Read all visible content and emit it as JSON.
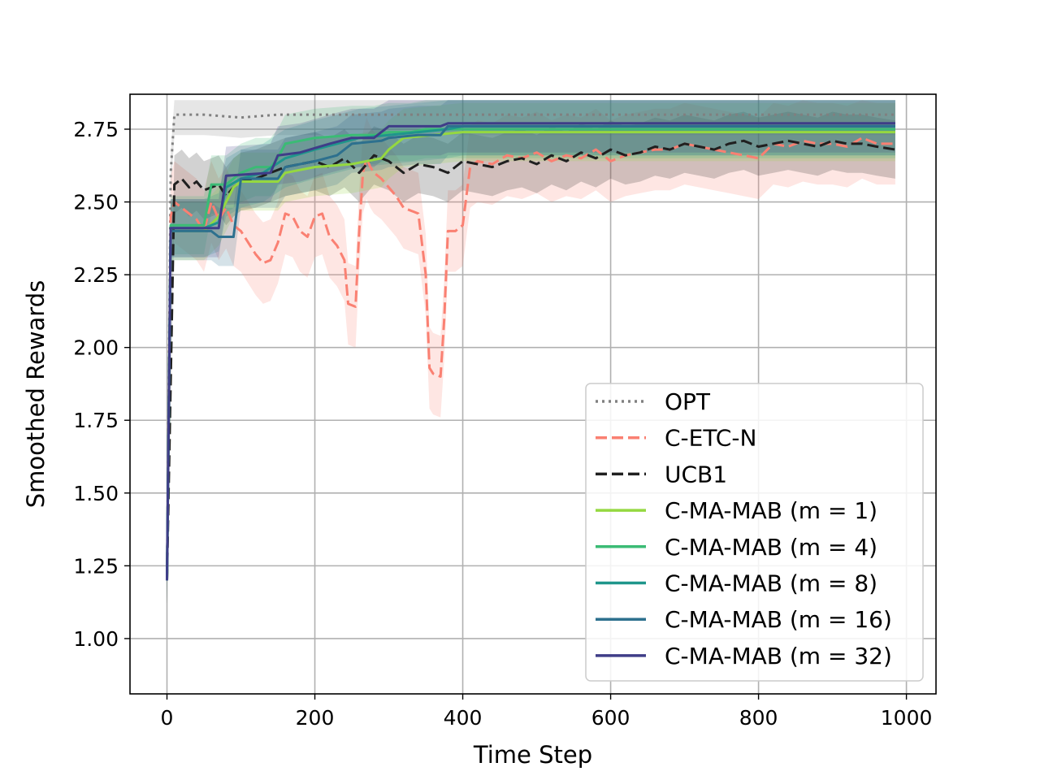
{
  "chart_data": {
    "type": "line",
    "title": "",
    "xlabel": "Time Step",
    "ylabel": "Smoothed Rewards",
    "xlim": [
      -50,
      1040
    ],
    "ylim": [
      0.81,
      2.87
    ],
    "xticks": [
      0,
      200,
      400,
      600,
      800,
      1000
    ],
    "xtick_labels": [
      "0",
      "200",
      "400",
      "600",
      "800",
      "1000"
    ],
    "yticks": [
      1.0,
      1.25,
      1.5,
      1.75,
      2.0,
      2.25,
      2.5,
      2.75
    ],
    "ytick_labels": [
      "1.00",
      "1.25",
      "1.50",
      "1.75",
      "2.00",
      "2.25",
      "2.50",
      "2.75"
    ],
    "grid": true,
    "legend_position": "lower-right",
    "series": [
      {
        "name": "OPT",
        "color": "#808080",
        "style": "dotted",
        "x": [
          0,
          5,
          10,
          50,
          100,
          150,
          200,
          250,
          300,
          350,
          400,
          500,
          600,
          700,
          800,
          900,
          985
        ],
        "y": [
          1.2,
          2.6,
          2.8,
          2.8,
          2.79,
          2.8,
          2.8,
          2.8,
          2.8,
          2.8,
          2.8,
          2.8,
          2.8,
          2.8,
          2.8,
          2.8,
          2.8
        ],
        "band": 0.07
      },
      {
        "name": "C-ETC-N",
        "color": "#fa8072",
        "style": "dashed",
        "x": [
          0,
          5,
          10,
          20,
          30,
          40,
          50,
          60,
          70,
          80,
          90,
          100,
          110,
          120,
          130,
          140,
          150,
          160,
          170,
          180,
          190,
          200,
          210,
          220,
          230,
          240,
          245,
          255,
          260,
          265,
          270,
          275,
          280,
          290,
          300,
          310,
          320,
          330,
          340,
          350,
          355,
          360,
          370,
          375,
          380,
          390,
          400,
          410,
          420,
          440,
          460,
          480,
          500,
          520,
          540,
          560,
          580,
          600,
          620,
          640,
          660,
          680,
          700,
          720,
          740,
          760,
          780,
          800,
          820,
          840,
          860,
          880,
          900,
          920,
          940,
          960,
          985
        ],
        "y": [
          1.2,
          2.45,
          2.5,
          2.48,
          2.46,
          2.44,
          2.4,
          2.5,
          2.44,
          2.48,
          2.42,
          2.4,
          2.36,
          2.32,
          2.29,
          2.3,
          2.36,
          2.46,
          2.45,
          2.4,
          2.38,
          2.45,
          2.46,
          2.38,
          2.35,
          2.3,
          2.15,
          2.14,
          2.4,
          2.6,
          2.65,
          2.62,
          2.6,
          2.58,
          2.55,
          2.52,
          2.48,
          2.47,
          2.46,
          2.25,
          1.93,
          1.91,
          1.9,
          2.1,
          2.4,
          2.4,
          2.42,
          2.62,
          2.64,
          2.63,
          2.66,
          2.65,
          2.67,
          2.64,
          2.66,
          2.65,
          2.68,
          2.64,
          2.66,
          2.67,
          2.68,
          2.68,
          2.7,
          2.69,
          2.68,
          2.67,
          2.66,
          2.65,
          2.7,
          2.69,
          2.71,
          2.7,
          2.7,
          2.69,
          2.72,
          2.7,
          2.7
        ],
        "band": 0.14
      },
      {
        "name": "UCB1",
        "color": "#202020",
        "style": "dashed",
        "x": [
          0,
          10,
          20,
          30,
          40,
          50,
          60,
          70,
          80,
          90,
          100,
          120,
          140,
          160,
          180,
          200,
          220,
          240,
          260,
          280,
          300,
          320,
          340,
          360,
          380,
          400,
          420,
          440,
          460,
          480,
          500,
          520,
          540,
          560,
          580,
          600,
          620,
          640,
          660,
          680,
          700,
          720,
          740,
          760,
          780,
          800,
          820,
          840,
          860,
          880,
          900,
          920,
          940,
          960,
          985
        ],
        "y": [
          1.2,
          2.56,
          2.58,
          2.55,
          2.57,
          2.54,
          2.55,
          2.56,
          2.52,
          2.55,
          2.57,
          2.58,
          2.6,
          2.62,
          2.63,
          2.64,
          2.62,
          2.65,
          2.6,
          2.66,
          2.64,
          2.6,
          2.63,
          2.62,
          2.6,
          2.64,
          2.63,
          2.62,
          2.64,
          2.65,
          2.63,
          2.66,
          2.64,
          2.67,
          2.65,
          2.68,
          2.66,
          2.67,
          2.69,
          2.68,
          2.7,
          2.69,
          2.68,
          2.7,
          2.71,
          2.69,
          2.7,
          2.71,
          2.7,
          2.69,
          2.71,
          2.7,
          2.7,
          2.69,
          2.68
        ],
        "band": 0.1
      },
      {
        "name": "C-MA-MAB (m = 1)",
        "color": "#95d840",
        "style": "solid",
        "x": [
          0,
          5,
          50,
          70,
          90,
          100,
          150,
          160,
          200,
          250,
          290,
          300,
          320,
          400,
          985
        ],
        "y": [
          1.2,
          2.4,
          2.4,
          2.45,
          2.55,
          2.57,
          2.57,
          2.6,
          2.62,
          2.63,
          2.65,
          2.68,
          2.72,
          2.74,
          2.74
        ],
        "band": 0.1
      },
      {
        "name": "C-MA-MAB (m = 4)",
        "color": "#3bbb75",
        "style": "solid",
        "x": [
          0,
          5,
          50,
          60,
          80,
          100,
          120,
          140,
          150,
          160,
          180,
          200,
          250,
          280,
          300,
          330,
          350,
          400,
          985
        ],
        "y": [
          1.2,
          2.42,
          2.42,
          2.56,
          2.56,
          2.6,
          2.62,
          2.62,
          2.65,
          2.7,
          2.71,
          2.72,
          2.73,
          2.73,
          2.74,
          2.74,
          2.75,
          2.75,
          2.75
        ],
        "band": 0.1
      },
      {
        "name": "C-MA-MAB (m = 8)",
        "color": "#1f968b",
        "style": "solid",
        "x": [
          0,
          5,
          50,
          70,
          80,
          100,
          130,
          160,
          200,
          230,
          260,
          300,
          340,
          380,
          400,
          985
        ],
        "y": [
          1.2,
          2.41,
          2.41,
          2.43,
          2.55,
          2.58,
          2.6,
          2.65,
          2.68,
          2.7,
          2.72,
          2.73,
          2.74,
          2.75,
          2.76,
          2.76
        ],
        "band": 0.1
      },
      {
        "name": "C-MA-MAB (m = 16)",
        "color": "#2d708e",
        "style": "solid",
        "x": [
          0,
          5,
          60,
          70,
          90,
          100,
          150,
          160,
          200,
          230,
          250,
          290,
          300,
          340,
          370,
          380,
          985
        ],
        "y": [
          1.2,
          2.4,
          2.4,
          2.38,
          2.38,
          2.58,
          2.58,
          2.62,
          2.64,
          2.66,
          2.7,
          2.71,
          2.72,
          2.73,
          2.73,
          2.76,
          2.76
        ],
        "band": 0.1
      },
      {
        "name": "C-MA-MAB (m = 32)",
        "color": "#3f3d88",
        "style": "solid",
        "x": [
          0,
          5,
          70,
          80,
          140,
          150,
          180,
          220,
          250,
          280,
          300,
          370,
          380,
          985
        ],
        "y": [
          1.2,
          2.41,
          2.41,
          2.59,
          2.6,
          2.66,
          2.67,
          2.7,
          2.72,
          2.72,
          2.76,
          2.76,
          2.77,
          2.77
        ],
        "band": 0.1
      }
    ]
  }
}
